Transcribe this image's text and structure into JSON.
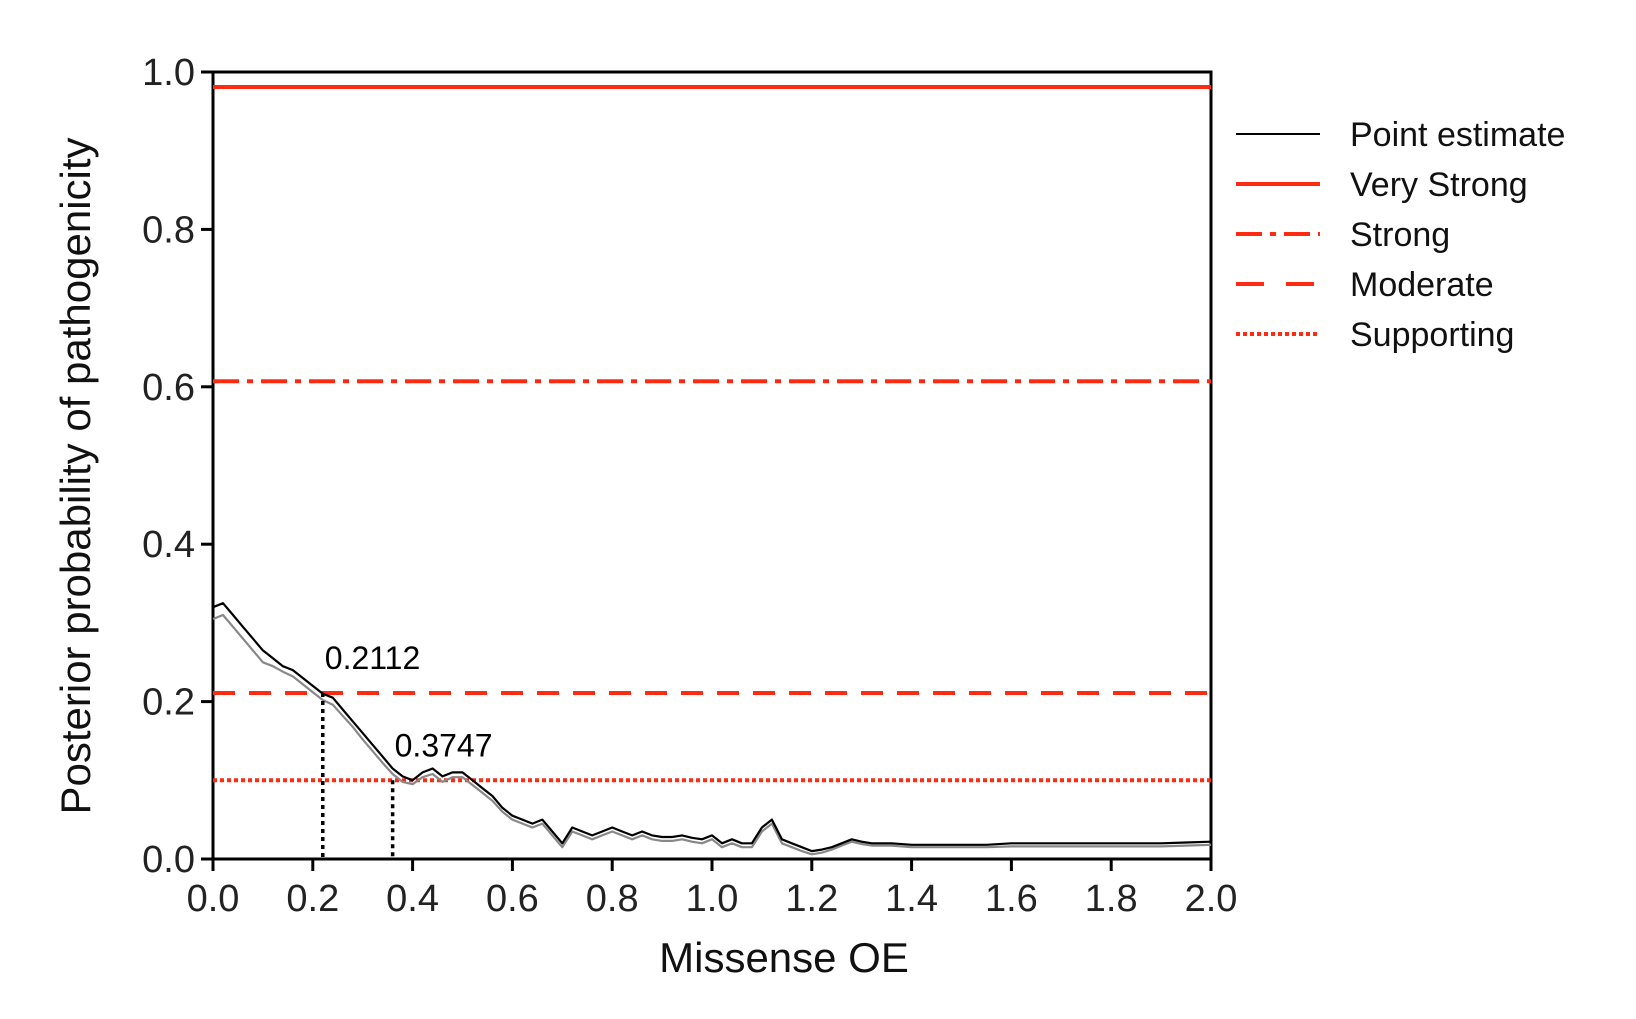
{
  "chart_data": {
    "type": "line",
    "title": "",
    "xlabel": "Missense OE",
    "ylabel": "Posterior probability of pathogenicity",
    "xlim": [
      0.0,
      2.0
    ],
    "ylim": [
      0.0,
      1.0
    ],
    "x_ticks": [
      "0.0",
      "0.2",
      "0.4",
      "0.6",
      "0.8",
      "1.0",
      "1.2",
      "1.4",
      "1.6",
      "1.8",
      "2.0"
    ],
    "y_ticks": [
      "0.0",
      "0.2",
      "0.4",
      "0.6",
      "0.8",
      "1.0"
    ],
    "grid": false,
    "legend_position": "right",
    "series": [
      {
        "name": "Point estimate",
        "color": "#000000",
        "style": "solid",
        "x": [
          0.0,
          0.02,
          0.04,
          0.06,
          0.08,
          0.1,
          0.12,
          0.14,
          0.16,
          0.18,
          0.2,
          0.22,
          0.24,
          0.26,
          0.28,
          0.3,
          0.32,
          0.34,
          0.36,
          0.38,
          0.4,
          0.42,
          0.44,
          0.46,
          0.48,
          0.5,
          0.52,
          0.54,
          0.56,
          0.58,
          0.6,
          0.62,
          0.64,
          0.66,
          0.68,
          0.7,
          0.72,
          0.74,
          0.76,
          0.78,
          0.8,
          0.82,
          0.84,
          0.86,
          0.88,
          0.9,
          0.92,
          0.94,
          0.96,
          0.98,
          1.0,
          1.02,
          1.04,
          1.06,
          1.08,
          1.1,
          1.12,
          1.14,
          1.16,
          1.18,
          1.2,
          1.22,
          1.24,
          1.26,
          1.28,
          1.3,
          1.32,
          1.36,
          1.4,
          1.45,
          1.5,
          1.55,
          1.6,
          1.7,
          1.8,
          1.9,
          1.95,
          2.0
        ],
        "y": [
          0.32,
          0.325,
          0.31,
          0.295,
          0.28,
          0.265,
          0.255,
          0.245,
          0.24,
          0.23,
          0.22,
          0.21,
          0.205,
          0.19,
          0.175,
          0.16,
          0.145,
          0.13,
          0.115,
          0.105,
          0.1,
          0.11,
          0.115,
          0.105,
          0.11,
          0.11,
          0.1,
          0.09,
          0.08,
          0.065,
          0.055,
          0.05,
          0.045,
          0.05,
          0.035,
          0.02,
          0.04,
          0.035,
          0.03,
          0.035,
          0.04,
          0.035,
          0.03,
          0.035,
          0.03,
          0.028,
          0.028,
          0.03,
          0.027,
          0.025,
          0.03,
          0.02,
          0.025,
          0.02,
          0.02,
          0.04,
          0.05,
          0.025,
          0.02,
          0.015,
          0.01,
          0.012,
          0.015,
          0.02,
          0.025,
          0.022,
          0.02,
          0.02,
          0.018,
          0.018,
          0.018,
          0.018,
          0.02,
          0.02,
          0.02,
          0.02,
          0.021,
          0.022
        ]
      },
      {
        "name": "",
        "color": "#888888",
        "style": "solid",
        "x": [
          0.0,
          0.02,
          0.04,
          0.06,
          0.08,
          0.1,
          0.12,
          0.14,
          0.16,
          0.18,
          0.2,
          0.22,
          0.24,
          0.26,
          0.28,
          0.3,
          0.32,
          0.34,
          0.36,
          0.38,
          0.4,
          0.42,
          0.44,
          0.46,
          0.48,
          0.5,
          0.52,
          0.54,
          0.56,
          0.58,
          0.6,
          0.62,
          0.64,
          0.66,
          0.68,
          0.7,
          0.72,
          0.74,
          0.76,
          0.78,
          0.8,
          0.82,
          0.84,
          0.86,
          0.88,
          0.9,
          0.92,
          0.94,
          0.96,
          0.98,
          1.0,
          1.02,
          1.04,
          1.06,
          1.08,
          1.1,
          1.12,
          1.14,
          1.16,
          1.18,
          1.2,
          1.22,
          1.24,
          1.26,
          1.28,
          1.3,
          1.32,
          1.36,
          1.4,
          1.45,
          1.5,
          1.55,
          1.6,
          1.7,
          1.8,
          1.9,
          1.95,
          2.0
        ],
        "y": [
          0.305,
          0.31,
          0.295,
          0.28,
          0.265,
          0.25,
          0.245,
          0.238,
          0.232,
          0.222,
          0.212,
          0.202,
          0.196,
          0.182,
          0.168,
          0.152,
          0.137,
          0.122,
          0.108,
          0.098,
          0.095,
          0.104,
          0.108,
          0.098,
          0.104,
          0.104,
          0.094,
          0.084,
          0.074,
          0.06,
          0.05,
          0.045,
          0.04,
          0.045,
          0.03,
          0.015,
          0.035,
          0.03,
          0.025,
          0.03,
          0.035,
          0.03,
          0.025,
          0.03,
          0.025,
          0.023,
          0.023,
          0.025,
          0.022,
          0.02,
          0.025,
          0.015,
          0.02,
          0.015,
          0.015,
          0.035,
          0.045,
          0.02,
          0.015,
          0.01,
          0.006,
          0.008,
          0.012,
          0.017,
          0.022,
          0.019,
          0.017,
          0.017,
          0.015,
          0.015,
          0.015,
          0.015,
          0.016,
          0.016,
          0.016,
          0.016,
          0.017,
          0.018
        ]
      }
    ],
    "thresholds": [
      {
        "name": "Very Strong",
        "y": 0.981,
        "color": "#ff2a12",
        "style": "solid"
      },
      {
        "name": "Strong",
        "y": 0.607,
        "color": "#ff2a12",
        "style": "dashdot"
      },
      {
        "name": "Moderate",
        "y": 0.211,
        "color": "#ff2a12",
        "style": "dashed"
      },
      {
        "name": "Supporting",
        "y": 0.1,
        "color": "#ff2a12",
        "style": "dotted"
      }
    ],
    "legend": [
      {
        "label": "Point estimate",
        "color": "#000000",
        "style": "thin"
      },
      {
        "label": "Very Strong",
        "color": "#ff2a12",
        "style": "solid"
      },
      {
        "label": "Strong",
        "color": "#ff2a12",
        "style": "dashdot"
      },
      {
        "label": "Moderate",
        "color": "#ff2a12",
        "style": "dashed"
      },
      {
        "label": "Supporting",
        "color": "#ff2a12",
        "style": "dotted"
      }
    ],
    "annotations": [
      {
        "text": "0.2112",
        "x": 0.22,
        "y": 0.211
      },
      {
        "text": "0.3747",
        "x": 0.36,
        "y": 0.1
      }
    ],
    "cutoff_lines": [
      {
        "x": 0.22,
        "y_top": 0.211
      },
      {
        "x": 0.36,
        "y_top": 0.1
      }
    ]
  }
}
